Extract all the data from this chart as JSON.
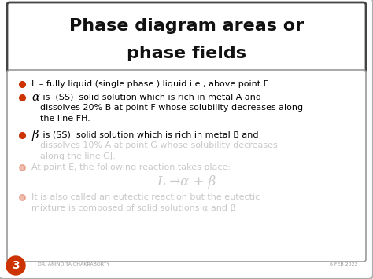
{
  "title_line1": "Phase diagram areas or",
  "title_line2": "phase fields",
  "title_bg": "#ffffff",
  "title_fg": "#111111",
  "slide_bg": "#ffffff",
  "bullet_color": "#cc3300",
  "bullet1": "L – fully liquid (single phase ) liquid i.e., above point E",
  "bullet2_greek": "α",
  "bullet2_text": " is  (SS)  solid solution which is rich in metal A and",
  "bullet2_line2": "    dissolves 20% B at point F whose solubility decreases along",
  "bullet2_line3": "    the line FH.",
  "bullet3_greek": "β",
  "bullet3_text": " is (SS)  solid solution which is rich in metal B and",
  "bullet3_blurred1": "dissolves 10% A at point G whose solubility decreases",
  "bullet3_blurred2": "along the line GJ.",
  "bullet4_blurred": "At point E, the following reaction takes place:",
  "equation_blurred": "L →α + β",
  "bullet5_blurred1": "It is also called an eutectic reaction but the eutectic",
  "bullet5_blurred2": "mixture is composed of solid solutions α and β",
  "slide_number": "3",
  "footer_left": "DR. ANINDITA CHAKRABORTY",
  "footer_right": "6 FEB 2022",
  "outer_bg": "#f0f0f0",
  "border_color": "#888888"
}
